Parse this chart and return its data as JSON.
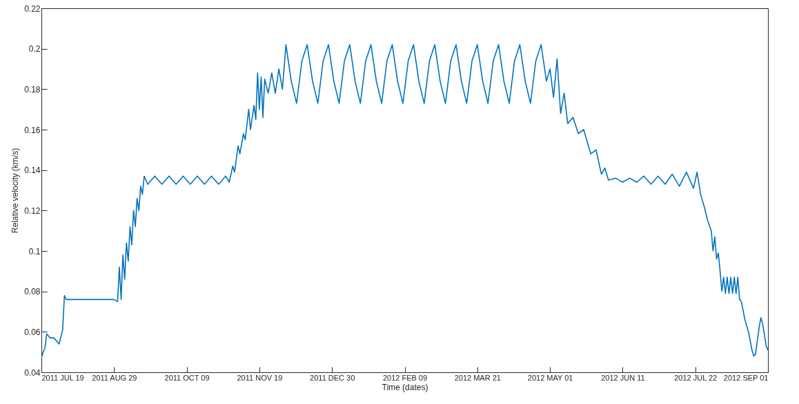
{
  "chart_data": {
    "type": "line",
    "xlabel": "Time (dates)",
    "ylabel": "Relative velocity (km/s)",
    "xlim": [
      "2011-07-19",
      "2012-09-01"
    ],
    "xticks": [
      {
        "value": "2011-07-19",
        "label": "2011 JUL 19"
      },
      {
        "value": "2011-08-29",
        "label": "2011 AUG 29"
      },
      {
        "value": "2011-10-09",
        "label": "2011 OCT 09"
      },
      {
        "value": "2011-11-19",
        "label": "2011 NOV 19"
      },
      {
        "value": "2011-12-30",
        "label": "2011 DEC 30"
      },
      {
        "value": "2012-02-09",
        "label": "2012 FEB 09"
      },
      {
        "value": "2012-03-21",
        "label": "2012 MAR 21"
      },
      {
        "value": "2012-05-01",
        "label": "2012 MAY 01"
      },
      {
        "value": "2012-06-11",
        "label": "2012 JUN 11"
      },
      {
        "value": "2012-07-22",
        "label": "2012 JUL 22"
      },
      {
        "value": "2012-09-01",
        "label": "2012 SEP 01"
      }
    ],
    "ylim": [
      0.04,
      0.22
    ],
    "yticks": [
      0.04,
      0.06,
      0.08,
      0.1,
      0.12,
      0.14,
      0.16,
      0.18,
      0.2,
      0.22
    ],
    "grid": false,
    "series": [
      {
        "color": "#0072bd",
        "x": [
          "2011-07-19",
          "2011-07-20",
          "2011-07-21",
          "2011-07-22",
          "2011-07-23",
          "2011-07-24",
          "2011-07-26",
          "2011-07-29",
          "2011-07-31",
          "2011-08-01",
          "2011-08-02",
          "2011-08-29",
          "2011-08-31",
          "2011-09-01",
          "2011-09-02",
          "2011-09-03",
          "2011-09-04",
          "2011-09-05",
          "2011-09-06",
          "2011-09-07",
          "2011-09-08",
          "2011-09-09",
          "2011-09-10",
          "2011-09-11",
          "2011-09-12",
          "2011-09-13",
          "2011-09-14",
          "2011-09-15",
          "2011-09-17",
          "2011-09-21",
          "2011-09-25",
          "2011-09-29",
          "2011-10-03",
          "2011-10-07",
          "2011-10-11",
          "2011-10-15",
          "2011-10-19",
          "2011-10-23",
          "2011-10-27",
          "2011-10-31",
          "2011-11-02",
          "2011-11-04",
          "2011-11-05",
          "2011-11-07",
          "2011-11-08",
          "2011-11-10",
          "2011-11-11",
          "2011-11-13",
          "2011-11-14",
          "2011-11-16",
          "2011-11-17",
          "2011-11-18",
          "2011-11-19",
          "2011-11-20",
          "2011-11-21",
          "2011-11-22",
          "2011-11-24",
          "2011-11-26",
          "2011-11-28",
          "2011-11-30",
          "2011-12-02",
          "2011-12-04",
          "2011-12-07",
          "2011-12-10",
          "2011-12-13",
          "2011-12-16",
          "2011-12-19",
          "2011-12-22",
          "2011-12-25",
          "2011-12-28",
          "2011-12-31",
          "2012-01-03",
          "2012-01-06",
          "2012-01-09",
          "2012-01-12",
          "2012-01-15",
          "2012-01-18",
          "2012-01-21",
          "2012-01-24",
          "2012-01-27",
          "2012-01-30",
          "2012-02-02",
          "2012-02-05",
          "2012-02-08",
          "2012-02-11",
          "2012-02-14",
          "2012-02-17",
          "2012-02-20",
          "2012-02-23",
          "2012-02-26",
          "2012-02-29",
          "2012-03-03",
          "2012-03-06",
          "2012-03-09",
          "2012-03-12",
          "2012-03-15",
          "2012-03-18",
          "2012-03-21",
          "2012-03-24",
          "2012-03-27",
          "2012-03-30",
          "2012-04-02",
          "2012-04-05",
          "2012-04-08",
          "2012-04-11",
          "2012-04-14",
          "2012-04-17",
          "2012-04-20",
          "2012-04-23",
          "2012-04-26",
          "2012-04-29",
          "2012-05-01",
          "2012-05-03",
          "2012-05-05",
          "2012-05-07",
          "2012-05-09",
          "2012-05-11",
          "2012-05-14",
          "2012-05-17",
          "2012-05-20",
          "2012-05-24",
          "2012-05-27",
          "2012-05-30",
          "2012-06-01",
          "2012-06-03",
          "2012-06-07",
          "2012-06-11",
          "2012-06-15",
          "2012-06-19",
          "2012-06-23",
          "2012-06-27",
          "2012-07-01",
          "2012-07-05",
          "2012-07-09",
          "2012-07-13",
          "2012-07-17",
          "2012-07-21",
          "2012-07-23",
          "2012-07-25",
          "2012-07-27",
          "2012-07-29",
          "2012-07-31",
          "2012-08-01",
          "2012-08-02",
          "2012-08-03",
          "2012-08-04",
          "2012-08-05",
          "2012-08-06",
          "2012-08-07",
          "2012-08-08",
          "2012-08-09",
          "2012-08-10",
          "2012-08-11",
          "2012-08-12",
          "2012-08-13",
          "2012-08-14",
          "2012-08-15",
          "2012-08-16",
          "2012-08-17",
          "2012-08-19",
          "2012-08-21",
          "2012-08-23",
          "2012-08-24",
          "2012-08-25",
          "2012-08-27",
          "2012-08-28",
          "2012-08-29",
          "2012-08-31",
          "2012-09-01"
        ],
        "values": [
          0.047,
          0.05,
          0.052,
          0.059,
          0.058,
          0.057,
          0.057,
          0.054,
          0.061,
          0.078,
          0.076,
          0.076,
          0.075,
          0.092,
          0.076,
          0.098,
          0.086,
          0.104,
          0.095,
          0.112,
          0.103,
          0.12,
          0.112,
          0.126,
          0.12,
          0.132,
          0.128,
          0.137,
          0.133,
          0.137,
          0.133,
          0.137,
          0.133,
          0.137,
          0.133,
          0.137,
          0.133,
          0.137,
          0.133,
          0.137,
          0.134,
          0.142,
          0.139,
          0.152,
          0.148,
          0.158,
          0.155,
          0.17,
          0.16,
          0.172,
          0.165,
          0.188,
          0.17,
          0.186,
          0.166,
          0.185,
          0.178,
          0.188,
          0.178,
          0.19,
          0.18,
          0.202,
          0.184,
          0.173,
          0.194,
          0.202,
          0.184,
          0.173,
          0.194,
          0.202,
          0.184,
          0.173,
          0.194,
          0.202,
          0.184,
          0.173,
          0.194,
          0.202,
          0.184,
          0.173,
          0.194,
          0.202,
          0.184,
          0.173,
          0.194,
          0.202,
          0.184,
          0.173,
          0.194,
          0.202,
          0.184,
          0.173,
          0.194,
          0.202,
          0.184,
          0.173,
          0.194,
          0.202,
          0.184,
          0.173,
          0.194,
          0.202,
          0.184,
          0.173,
          0.194,
          0.202,
          0.184,
          0.173,
          0.194,
          0.202,
          0.184,
          0.19,
          0.176,
          0.195,
          0.168,
          0.178,
          0.163,
          0.166,
          0.158,
          0.16,
          0.148,
          0.15,
          0.138,
          0.141,
          0.135,
          0.136,
          0.134,
          0.136,
          0.134,
          0.137,
          0.133,
          0.137,
          0.133,
          0.138,
          0.132,
          0.139,
          0.131,
          0.139,
          0.128,
          0.122,
          0.115,
          0.11,
          0.1,
          0.107,
          0.096,
          0.099,
          0.09,
          0.08,
          0.087,
          0.079,
          0.087,
          0.079,
          0.087,
          0.079,
          0.087,
          0.079,
          0.087,
          0.076,
          0.075,
          0.066,
          0.06,
          0.051,
          0.048,
          0.049,
          0.062,
          0.067,
          0.064,
          0.053,
          0.051
        ]
      }
    ]
  }
}
